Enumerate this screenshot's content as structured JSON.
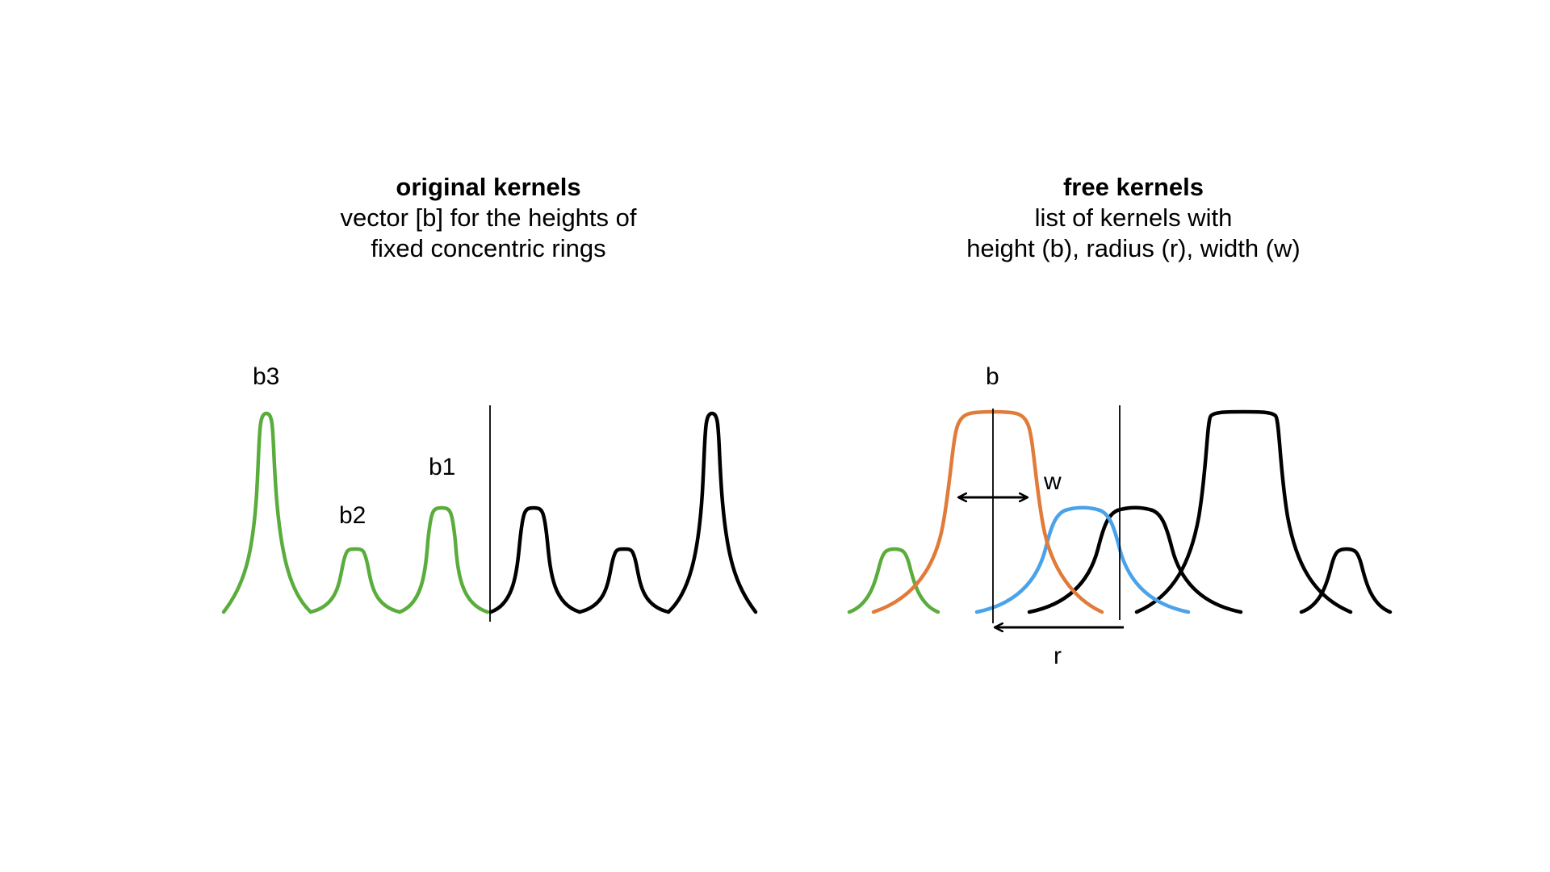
{
  "left_panel": {
    "title": "original kernels",
    "subtitle_line1": "vector [b] for the heights of",
    "subtitle_line2": "fixed concentric rings",
    "labels": {
      "b3": "b3",
      "b2": "b2",
      "b1": "b1"
    }
  },
  "right_panel": {
    "title": "free kernels",
    "subtitle_line1": "list of kernels with",
    "subtitle_line2": "height (b), radius (r), width (w)",
    "labels": {
      "b": "b",
      "w": "w",
      "r": "r"
    }
  },
  "colors": {
    "green": "#5aad3c",
    "orange": "#e07b39",
    "blue": "#4aa3ea",
    "black": "#000000"
  }
}
